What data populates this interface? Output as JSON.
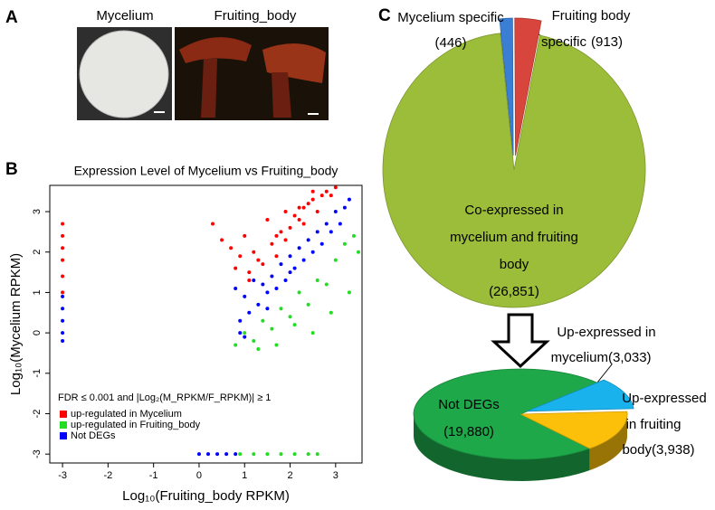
{
  "panel_labels": [
    "A",
    "B",
    "C"
  ],
  "photo_labels": [
    "Mycelium",
    "Fruiting_body"
  ],
  "chart_data": [
    {
      "type": "scatter",
      "title": "Expression Level of Mycelium vs Fruiting_body",
      "x_label": "Log₁₀(Fruiting_body RPKM)",
      "y_label": "Log₁₀(Mycelium RPKM)",
      "legend_title": "FDR ≤ 0.001 and |Log₂(M_RPKM/F_RPKM)| ≥ 1",
      "xlim": [
        -3.28,
        3.58
      ],
      "ylim": [
        -3.22,
        3.65
      ],
      "xticks": [
        -3,
        -2,
        -1,
        0,
        1,
        2,
        3
      ],
      "yticks": [
        -3,
        -2,
        -1,
        0,
        1,
        2,
        3
      ],
      "series": [
        {
          "name": "up-regulated in Mycelium",
          "color": "#ff0000",
          "x": [
            -3,
            -3,
            -3,
            -3,
            -3,
            -3,
            0.3,
            0.5,
            0.7,
            0.8,
            1.0,
            1.1,
            1.2,
            1.3,
            1.5,
            1.6,
            1.7,
            1.8,
            1.9,
            2.0,
            2.1,
            2.2,
            2.3,
            2.4,
            2.5,
            2.6,
            2.7,
            2.8,
            2.9,
            3.0,
            1.4,
            1.7,
            2.2,
            2.5,
            0.9,
            1.9,
            2.3,
            1.1
          ],
          "values": [
            2.7,
            2.4,
            2.1,
            1.8,
            1.4,
            1.0,
            2.7,
            2.3,
            2.1,
            1.6,
            2.4,
            1.5,
            2.0,
            1.8,
            2.8,
            2.2,
            1.9,
            2.5,
            3.0,
            2.6,
            2.9,
            3.1,
            2.7,
            3.2,
            3.3,
            3.0,
            3.4,
            3.5,
            3.4,
            3.6,
            1.7,
            2.4,
            2.8,
            3.5,
            1.9,
            2.3,
            3.1,
            1.3
          ]
        },
        {
          "name": "up-regulated in Fruiting_body",
          "color": "#22dd22",
          "x": [
            0.8,
            1.0,
            1.2,
            1.4,
            1.6,
            1.8,
            2.0,
            2.2,
            2.4,
            2.6,
            2.8,
            3.0,
            3.2,
            3.4,
            3.5,
            1.3,
            1.7,
            2.1,
            2.5,
            2.9,
            3.3,
            0.9,
            1.2,
            1.5,
            1.8,
            2.1,
            2.4,
            2.6
          ],
          "values": [
            -0.3,
            0.0,
            -0.2,
            0.3,
            0.1,
            0.6,
            0.4,
            1.0,
            0.7,
            1.3,
            1.2,
            1.8,
            2.2,
            2.4,
            2.0,
            -0.4,
            -0.3,
            0.2,
            0.0,
            0.5,
            1.0,
            -3,
            -3,
            -3,
            -3,
            -3,
            -3,
            -3
          ]
        },
        {
          "name": "Not DEGs",
          "color": "#0000ff",
          "x": [
            -3,
            -3,
            -3,
            -3,
            -3,
            0.0,
            0.2,
            0.4,
            0.6,
            0.8,
            0.8,
            0.9,
            1.0,
            1.1,
            1.2,
            1.3,
            1.4,
            1.5,
            1.6,
            1.7,
            1.8,
            1.9,
            2.0,
            2.1,
            2.2,
            2.3,
            2.4,
            2.5,
            2.6,
            2.7,
            2.8,
            2.9,
            3.0,
            3.1,
            3.2,
            3.3,
            1.0,
            1.5,
            2.0,
            0.9
          ],
          "values": [
            0.9,
            0.6,
            0.3,
            0.0,
            -0.2,
            -3,
            -3,
            -3,
            -3,
            -3,
            1.1,
            0.3,
            0.9,
            0.5,
            1.3,
            0.7,
            1.2,
            1.0,
            1.4,
            1.1,
            1.7,
            1.3,
            1.9,
            1.6,
            2.1,
            1.8,
            2.3,
            2.0,
            2.5,
            2.2,
            2.7,
            2.5,
            3.0,
            2.7,
            3.1,
            3.3,
            -0.1,
            0.6,
            1.5,
            0.0
          ]
        }
      ]
    },
    {
      "type": "pie",
      "categories": [
        [
          "Mycelium specific"
        ],
        [
          "Fruiting body",
          "specific"
        ],
        [
          "Co-expressed in",
          "mycelium and fruiting",
          "body"
        ]
      ],
      "values": [
        446,
        913,
        26851
      ],
      "value_labels": [
        "(446)",
        "(913)",
        "(26,851)"
      ],
      "colors": [
        "#3b7fd4",
        "#d8453c",
        "#9cbd3a"
      ]
    },
    {
      "type": "pie3d",
      "categories": [
        [
          "Not DEGs"
        ],
        [
          "Up-expressed in",
          "mycelium"
        ],
        [
          "Up-expressed",
          "in fruiting",
          "body"
        ]
      ],
      "values": [
        19880,
        3033,
        3938
      ],
      "value_labels": [
        "(19,880)",
        "(3,033)",
        "(3,938)"
      ],
      "colors": [
        "#1ea84a",
        "#19b2ec",
        "#fdc00a"
      ]
    }
  ]
}
